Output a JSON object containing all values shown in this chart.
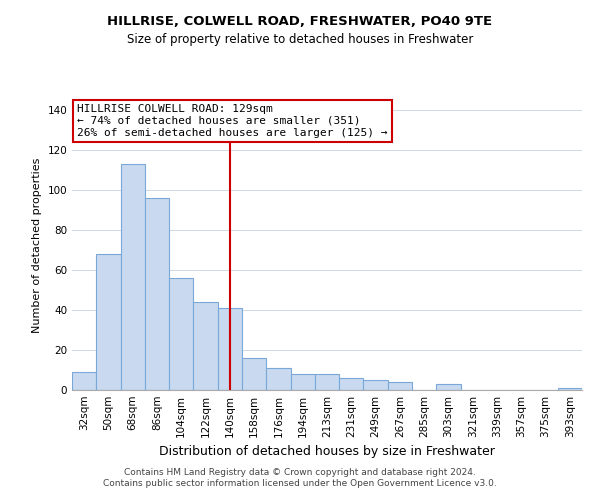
{
  "title": "HILLRISE, COLWELL ROAD, FRESHWATER, PO40 9TE",
  "subtitle": "Size of property relative to detached houses in Freshwater",
  "xlabel": "Distribution of detached houses by size in Freshwater",
  "ylabel": "Number of detached properties",
  "categories": [
    "32sqm",
    "50sqm",
    "68sqm",
    "86sqm",
    "104sqm",
    "122sqm",
    "140sqm",
    "158sqm",
    "176sqm",
    "194sqm",
    "213sqm",
    "231sqm",
    "249sqm",
    "267sqm",
    "285sqm",
    "303sqm",
    "321sqm",
    "339sqm",
    "357sqm",
    "375sqm",
    "393sqm"
  ],
  "values": [
    9,
    68,
    113,
    96,
    56,
    44,
    41,
    16,
    11,
    8,
    8,
    6,
    5,
    4,
    0,
    3,
    0,
    0,
    0,
    0,
    1
  ],
  "bar_color": "#c8d9f0",
  "bar_edge_color": "#7aa8d8",
  "vline_x": 6.0,
  "vline_color": "#cc0000",
  "annotation_text": "HILLRISE COLWELL ROAD: 129sqm\n← 74% of detached houses are smaller (351)\n26% of semi-detached houses are larger (125) →",
  "annotation_box_color": "#ffffff",
  "annotation_box_edge_color": "#cc0000",
  "ylim": [
    0,
    145
  ],
  "yticks": [
    0,
    20,
    40,
    60,
    80,
    100,
    120,
    140
  ],
  "footer": "Contains HM Land Registry data © Crown copyright and database right 2024.\nContains public sector information licensed under the Open Government Licence v3.0.",
  "background_color": "#ffffff",
  "grid_color": "#d0d8e8",
  "title_fontsize": 9.5,
  "subtitle_fontsize": 8.5,
  "ylabel_fontsize": 8.0,
  "xlabel_fontsize": 9.0,
  "tick_fontsize": 7.5,
  "annot_fontsize": 8.0,
  "footer_fontsize": 6.5
}
